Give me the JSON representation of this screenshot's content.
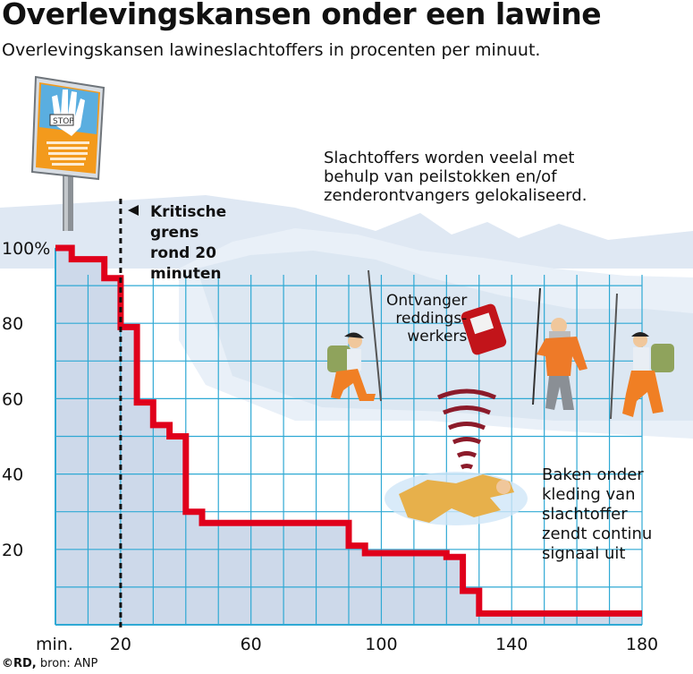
{
  "header": {
    "title": "Overlevingskansen onder een lawine",
    "subtitle": "Overlevingskansen lawineslachtoffers in procenten per minuut."
  },
  "annotations": {
    "critical_line": [
      "Kritische",
      "grens",
      "rond 20",
      "minuten"
    ],
    "probes": [
      "Slachtoffers worden veelal met",
      "behulp van peilstokken en/of",
      "zenderontvangers gelokaliseerd."
    ],
    "receiver": [
      "Ontvanger",
      "reddings-",
      "werkers"
    ],
    "beacon": [
      "Baken onder",
      "kleding van",
      "slachtoffer",
      "zendt continu",
      "signaal uit"
    ]
  },
  "sign": {
    "stop_text": "STOP"
  },
  "credit": {
    "owner": "©RD,",
    "source": "bron: ANP"
  },
  "colors": {
    "curve": "#e0001b",
    "area": "#cdd9ea",
    "grid": "#2fa9d4",
    "snow": "#eef4fa",
    "sign_bg": "#f39a1c",
    "sign_hand": "#5aaee0"
  },
  "chart_data": {
    "type": "area",
    "x_unit_label": "min.",
    "xticks": [
      20,
      60,
      100,
      140,
      180
    ],
    "yticks": [
      "100%",
      "80",
      "60",
      "40",
      "20"
    ],
    "xlim": [
      0,
      180
    ],
    "ylim": [
      0,
      100
    ],
    "critical_minute": 20,
    "x": [
      0,
      5,
      5,
      15,
      15,
      20,
      20,
      25,
      25,
      30,
      30,
      35,
      35,
      40,
      40,
      45,
      45,
      90,
      90,
      95,
      95,
      110,
      110,
      120,
      120,
      125,
      125,
      130,
      130,
      180
    ],
    "y": [
      100,
      100,
      97,
      97,
      92,
      92,
      79,
      79,
      59,
      59,
      53,
      53,
      50,
      50,
      30,
      30,
      27,
      27,
      21,
      21,
      19,
      19,
      19,
      19,
      18,
      18,
      9,
      9,
      3,
      3
    ],
    "grid": true
  }
}
